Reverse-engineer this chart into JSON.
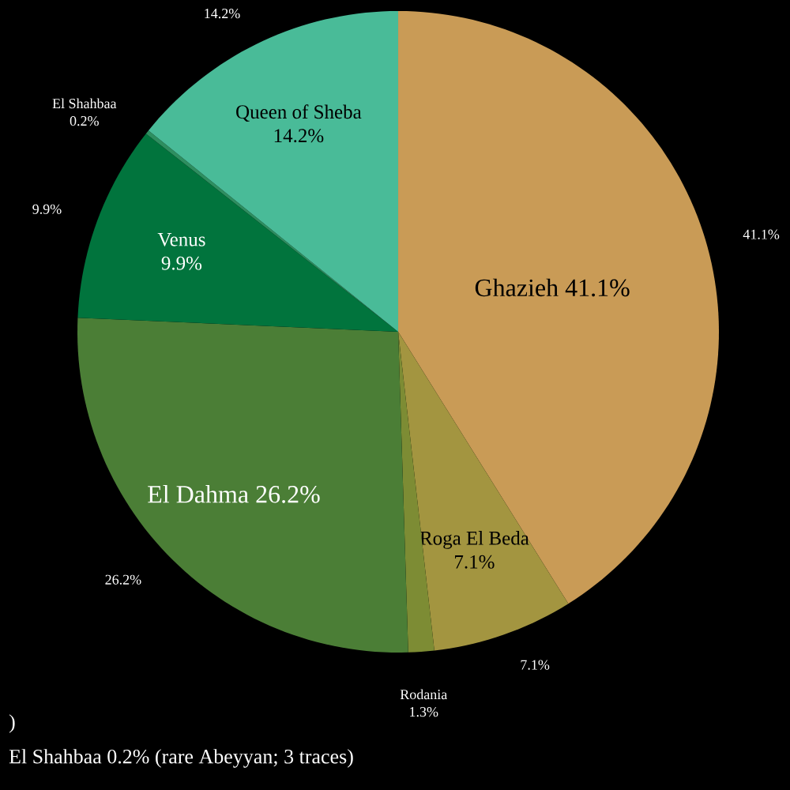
{
  "chart_data": {
    "type": "pie",
    "categories": [
      "Ghazieh",
      "Roga El Beda",
      "Rodania",
      "El Dahma",
      "Venus",
      "El Shahbaa",
      "Queen of Sheba"
    ],
    "values": [
      41.1,
      7.1,
      1.3,
      26.2,
      9.9,
      0.2,
      14.2
    ],
    "value_labels": [
      "41.1%",
      "7.1%",
      "1.3%",
      "26.2%",
      "9.9%",
      "0.2%",
      "14.2%"
    ],
    "colors": [
      "#c99b56",
      "#a39540",
      "#7d8c34",
      "#4b7e36",
      "#01743d",
      "#2e8f60",
      "#49bb98"
    ],
    "annotations": [
      ")",
      "El Shahbaa 0.2% (rare Abeyyan; 3 traces)"
    ]
  }
}
